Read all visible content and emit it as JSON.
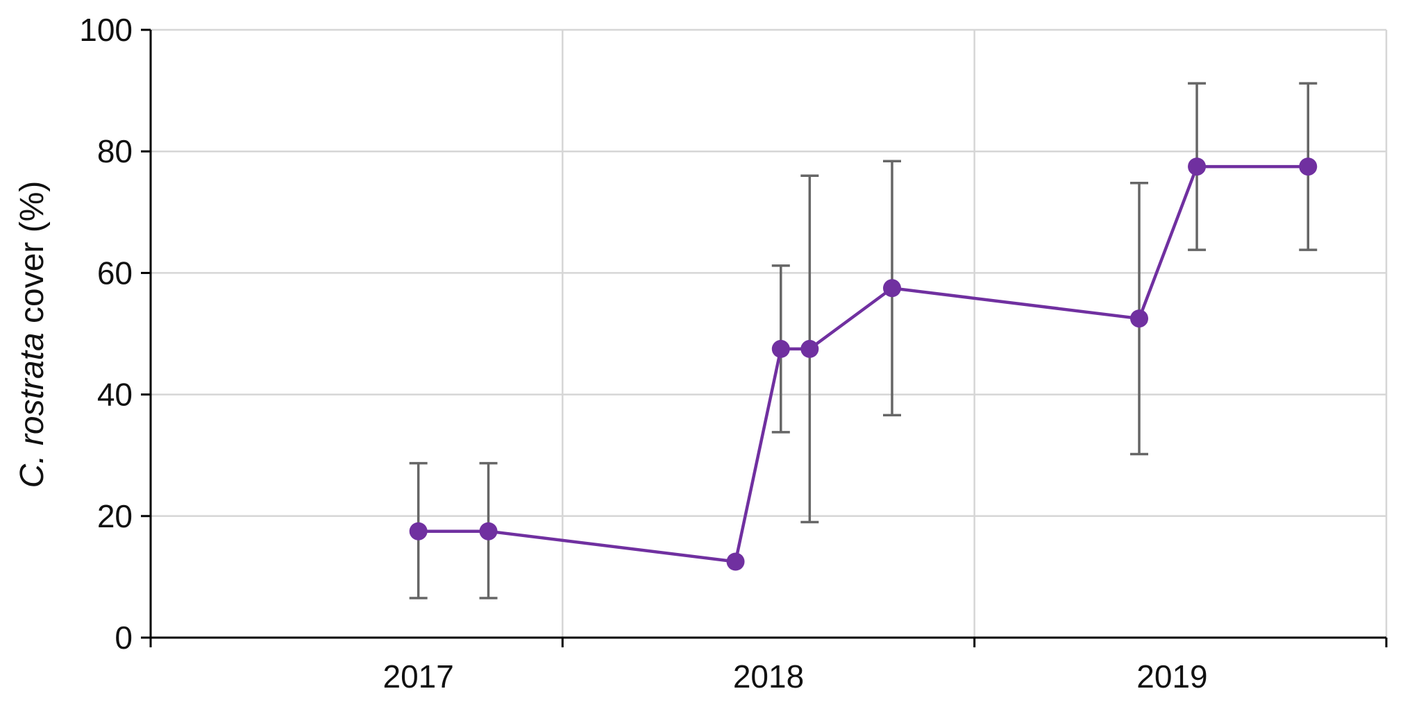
{
  "chart_data": {
    "type": "line",
    "title": "",
    "xlabel": "",
    "ylabel_parts": [
      "C. ",
      "rostrata",
      " cover (%)"
    ],
    "ylim": [
      0,
      100
    ],
    "yticks": [
      0,
      20,
      40,
      60,
      80,
      100
    ],
    "xlim": [
      0,
      3
    ],
    "xtick_labels": [
      {
        "x": 0.65,
        "label": "2017"
      },
      {
        "x": 1.5,
        "label": "2018"
      },
      {
        "x": 2.48,
        "label": "2019"
      }
    ],
    "grid": true,
    "colors": {
      "series": "#7030a0",
      "error_bar": "#666666",
      "grid": "#d6d6d6",
      "axis": "#000000"
    },
    "series": [
      {
        "points": [
          {
            "x": 0.65,
            "y": 17.5,
            "low": 6.5,
            "high": 28.7
          },
          {
            "x": 0.82,
            "y": 17.5,
            "low": 6.5,
            "high": 28.7
          },
          {
            "x": 1.42,
            "y": 12.5,
            "low": 12.5,
            "high": 12.5
          },
          {
            "x": 1.53,
            "y": 47.5,
            "low": 33.8,
            "high": 61.2
          },
          {
            "x": 1.6,
            "y": 47.5,
            "low": 19.0,
            "high": 76.0
          },
          {
            "x": 1.8,
            "y": 57.5,
            "low": 36.6,
            "high": 78.4
          },
          {
            "x": 2.4,
            "y": 52.5,
            "low": 30.2,
            "high": 74.8
          },
          {
            "x": 2.54,
            "y": 77.5,
            "low": 63.8,
            "high": 91.2
          },
          {
            "x": 2.81,
            "y": 77.5,
            "low": 63.8,
            "high": 91.2
          }
        ]
      }
    ]
  }
}
